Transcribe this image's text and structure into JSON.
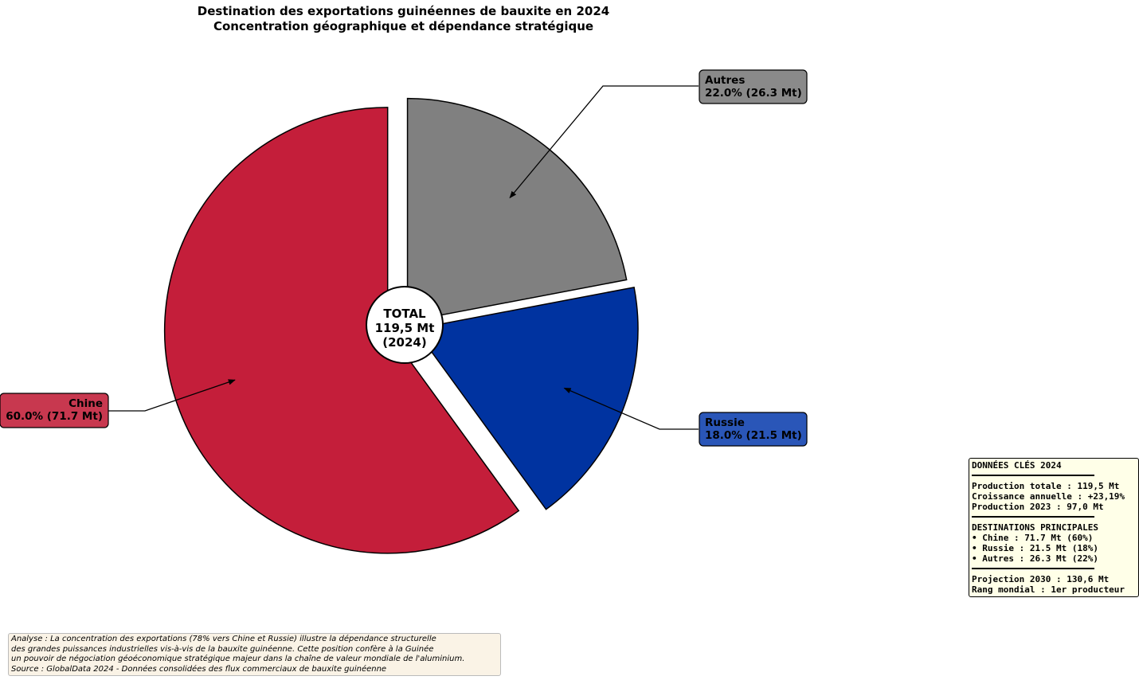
{
  "chart_data": {
    "type": "pie",
    "title": "Destination des exportations guinéennes de bauxite en 2024",
    "subtitle": "Concentration géographique et dépendance stratégique",
    "categories": [
      "Chine",
      "Russie",
      "Autres"
    ],
    "values": [
      71.7,
      21.5,
      26.3
    ],
    "percentages": [
      60.0,
      18.0,
      22.0
    ],
    "unit": "Mt",
    "colors": [
      "#c41e3a",
      "#0033a0",
      "#808080"
    ],
    "label_colors": [
      "#c8384f",
      "#2a56b8",
      "#8a8a8a"
    ],
    "labels": [
      "60.0% (71.7 Mt)",
      "18.0% (21.5 Mt)",
      "22.0% (26.3 Mt)"
    ],
    "explode": [
      0.08,
      0.05,
      0.02
    ],
    "start_angle": 90,
    "center_label": [
      "TOTAL",
      "119,5 Mt",
      "(2024)"
    ]
  },
  "key_box": {
    "title": "DONNÉES CLÉS 2024",
    "production": [
      "Production totale : 119,5 Mt",
      "Croissance annuelle : +23,19%",
      "Production 2023 : 97,0 Mt"
    ],
    "destinations_title": "DESTINATIONS PRINCIPALES",
    "destinations": [
      "• Chine : 71.7 Mt (60%)",
      "• Russie : 21.5 Mt (18%)",
      "• Autres : 26.3 Mt (22%)"
    ],
    "outlook": [
      "Projection 2030 : 130,6 Mt",
      "Rang mondial : 1er producteur"
    ]
  },
  "note": [
    "Analyse : La concentration des exportations (78% vers Chine et Russie) illustre la dépendance structurelle",
    "des grandes puissances industrielles vis-à-vis de la bauxite guinéenne. Cette position confère à la Guinée",
    "un pouvoir de négociation géoéconomique stratégique majeur dans la chaîne de valeur mondiale de l'aluminium.",
    "Source : GlobalData 2024 - Données consolidées des flux commerciaux de bauxite guinéenne"
  ]
}
